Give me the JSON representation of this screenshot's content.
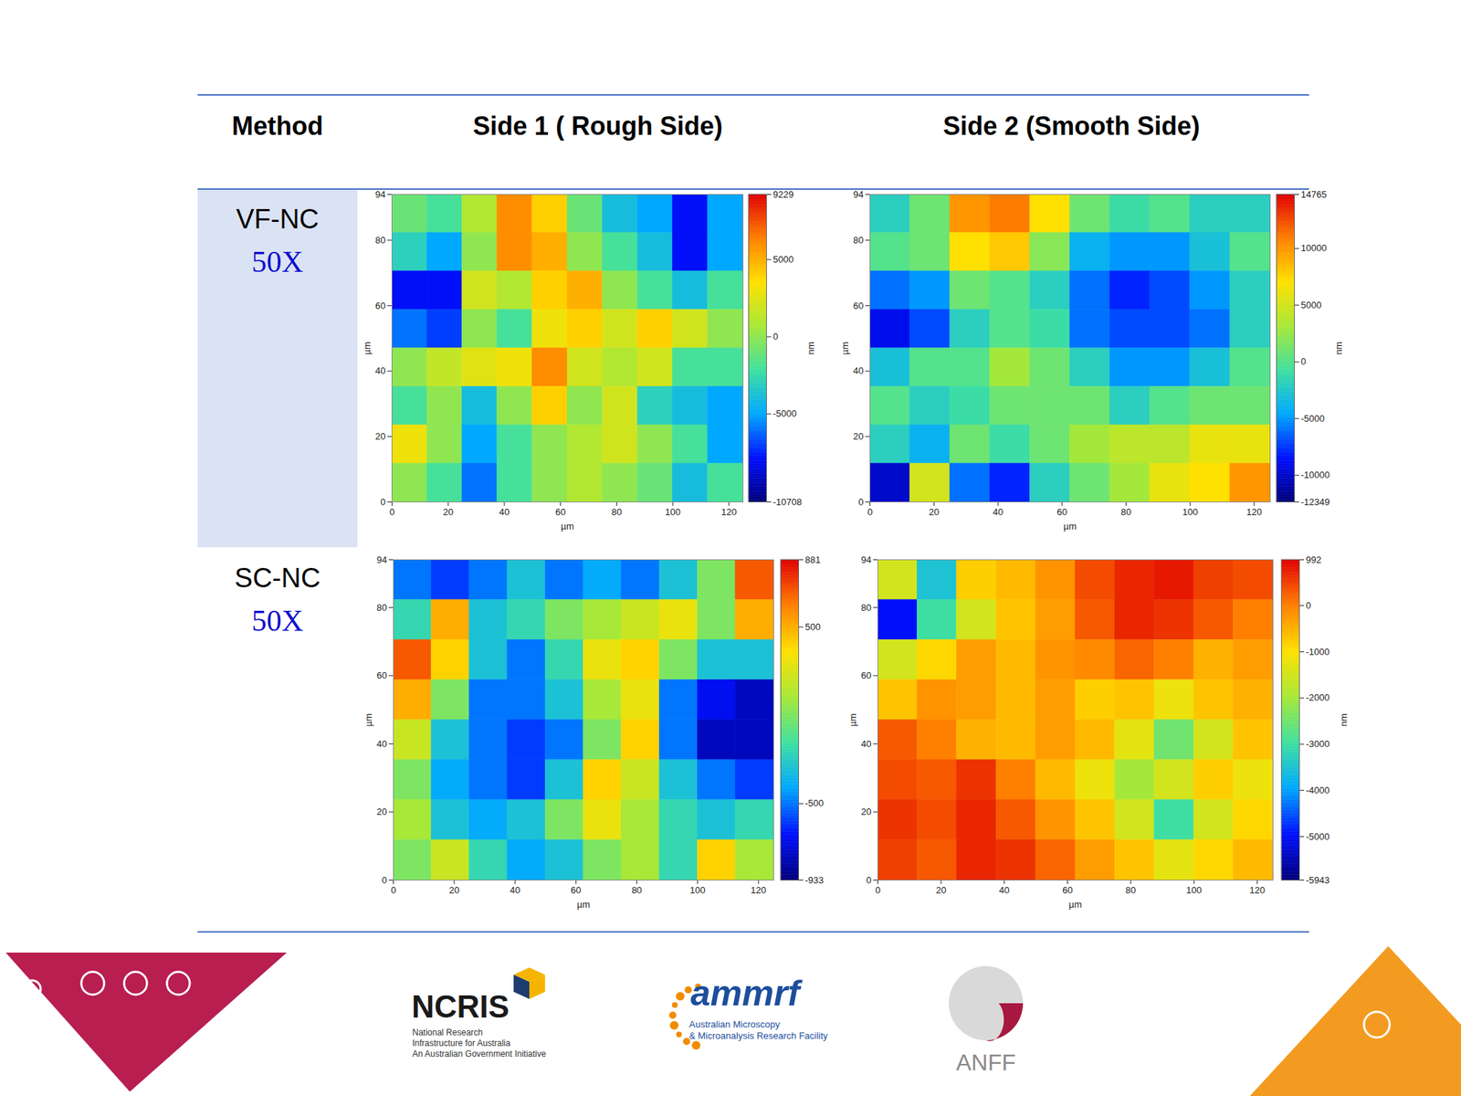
{
  "table": {
    "columns": [
      "Method",
      "Side 1 ( Rough Side)",
      "Side 2 (Smooth Side)"
    ],
    "rows": [
      {
        "method": "VF-NC",
        "magnification": "50X"
      },
      {
        "method": "SC-NC",
        "magnification": "50X"
      }
    ]
  },
  "chart_data": [
    {
      "type": "heatmap",
      "x_label": "µm",
      "y_label": "µm",
      "xlim": [
        0,
        125
      ],
      "ylim": [
        0,
        94
      ],
      "xticks": [
        0,
        20,
        40,
        60,
        80,
        100,
        120
      ],
      "yticks": [
        0,
        20,
        40,
        60,
        80,
        94
      ],
      "x_bins": [
        0,
        12.5,
        25,
        37.5,
        50,
        62.5,
        75,
        87.5,
        100,
        112.5,
        125
      ],
      "y_bins": [
        94,
        82.25,
        70.5,
        58.75,
        47,
        35.25,
        23.5,
        11.75,
        0
      ],
      "cells": [
        [
          -1000,
          -2000,
          1000,
          6000,
          4000,
          -1000,
          -4000,
          -5000,
          -8000,
          -5000
        ],
        [
          -3000,
          -5000,
          0,
          6000,
          5000,
          0,
          -2000,
          -4000,
          -8000,
          -5000
        ],
        [
          -8000,
          -8000,
          2000,
          1000,
          4000,
          5000,
          0,
          -2000,
          -4000,
          -2000
        ],
        [
          -6000,
          -7000,
          0,
          -2000,
          3000,
          4000,
          2000,
          4000,
          2000,
          0
        ],
        [
          0,
          1500,
          2500,
          3000,
          6000,
          2000,
          1000,
          2000,
          -2000,
          -2000
        ],
        [
          -2000,
          0,
          -4000,
          0,
          4000,
          0,
          2000,
          -3000,
          -4000,
          -5000
        ],
        [
          3000,
          0,
          -5000,
          -2000,
          0,
          1000,
          2000,
          0,
          -2000,
          -5000
        ],
        [
          0,
          -2000,
          -6000,
          -2000,
          0,
          1000,
          0,
          -1000,
          -4000,
          -2000
        ]
      ],
      "colorbar_range": [
        -10708,
        9229
      ],
      "colorbar_ticks": [
        -10708,
        -5000,
        0,
        5000,
        9229
      ],
      "colorbar_label": "nm"
    },
    {
      "type": "heatmap",
      "x_label": "µm",
      "y_label": "µm",
      "xlim": [
        0,
        125
      ],
      "ylim": [
        0,
        94
      ],
      "xticks": [
        0,
        20,
        40,
        60,
        80,
        100,
        120
      ],
      "yticks": [
        0,
        20,
        40,
        60,
        80,
        94
      ],
      "x_bins": [
        0,
        12.5,
        25,
        37.5,
        50,
        62.5,
        75,
        87.5,
        100,
        112.5,
        125
      ],
      "y_bins": [
        94,
        82.25,
        70.5,
        58.75,
        47,
        35.25,
        23.5,
        11.75,
        0
      ],
      "cells": [
        [
          -2000,
          1000,
          10000,
          11000,
          7000,
          1000,
          -1000,
          0,
          -2000,
          -2000
        ],
        [
          0,
          1000,
          7000,
          8000,
          2000,
          -4000,
          -5000,
          -5000,
          -3000,
          0
        ],
        [
          -6000,
          -5000,
          1000,
          0,
          -2000,
          -6000,
          -8000,
          -7000,
          -5000,
          -2000
        ],
        [
          -9000,
          -7000,
          -2000,
          0,
          -1000,
          -6000,
          -7000,
          -7000,
          -6000,
          -2000
        ],
        [
          -3000,
          0,
          0,
          3000,
          1000,
          -2000,
          -5000,
          -5000,
          -3000,
          0
        ],
        [
          0,
          -2000,
          -1000,
          1000,
          1000,
          1000,
          -2000,
          0,
          1000,
          1000
        ],
        [
          -2000,
          -4000,
          1000,
          -1000,
          1000,
          3000,
          4000,
          4000,
          6000,
          6000
        ],
        [
          -10000,
          5000,
          -6000,
          -8000,
          -2000,
          1000,
          3000,
          6000,
          7000,
          10000
        ]
      ],
      "colorbar_range": [
        -12349,
        14765
      ],
      "colorbar_ticks": [
        -12349,
        -10000,
        -5000,
        0,
        5000,
        10000,
        14765
      ],
      "colorbar_label": "nm"
    },
    {
      "type": "heatmap",
      "x_label": "µm",
      "y_label": "µm",
      "xlim": [
        0,
        125
      ],
      "ylim": [
        0,
        94
      ],
      "xticks": [
        0,
        20,
        40,
        60,
        80,
        100,
        120
      ],
      "yticks": [
        0,
        20,
        40,
        60,
        80,
        94
      ],
      "x_bins": [
        0,
        12.5,
        25,
        37.5,
        50,
        62.5,
        75,
        87.5,
        100,
        112.5,
        125
      ],
      "y_bins": [
        94,
        82.25,
        70.5,
        58.75,
        47,
        35.25,
        23.5,
        11.75,
        0
      ],
      "cells": [
        [
          -500,
          -600,
          -500,
          -300,
          -500,
          -400,
          -500,
          -300,
          0,
          700
        ],
        [
          -200,
          500,
          -300,
          -200,
          0,
          100,
          200,
          300,
          0,
          500
        ],
        [
          700,
          400,
          -300,
          -500,
          -200,
          300,
          400,
          0,
          -300,
          -300
        ],
        [
          500,
          0,
          -500,
          -500,
          -300,
          100,
          300,
          -500,
          -700,
          -800
        ],
        [
          200,
          -300,
          -500,
          -600,
          -500,
          0,
          400,
          -500,
          -800,
          -800
        ],
        [
          0,
          -400,
          -500,
          -600,
          -300,
          400,
          200,
          -300,
          -500,
          -600
        ],
        [
          100,
          -300,
          -400,
          -300,
          0,
          300,
          100,
          -200,
          -300,
          -200
        ],
        [
          0,
          200,
          -200,
          -400,
          -300,
          0,
          100,
          -200,
          400,
          100
        ]
      ],
      "colorbar_range": [
        -933,
        881
      ],
      "colorbar_ticks": [
        -933,
        -500,
        500,
        881
      ]
    },
    {
      "type": "heatmap",
      "x_label": "µm",
      "y_label": "µm",
      "xlim": [
        0,
        125
      ],
      "ylim": [
        0,
        94
      ],
      "xticks": [
        0,
        20,
        40,
        60,
        80,
        100,
        120
      ],
      "yticks": [
        0,
        20,
        40,
        60,
        80,
        94
      ],
      "x_bins": [
        0,
        12.5,
        25,
        37.5,
        50,
        62.5,
        75,
        87.5,
        100,
        112.5,
        125
      ],
      "y_bins": [
        94,
        82.25,
        70.5,
        58.75,
        47,
        35.25,
        23.5,
        11.75,
        0
      ],
      "cells": [
        [
          -1500,
          -3500,
          -800,
          -600,
          -200,
          400,
          700,
          800,
          500,
          400
        ],
        [
          -5000,
          -3000,
          -1500,
          -700,
          -300,
          300,
          700,
          600,
          300,
          0
        ],
        [
          -1500,
          -900,
          -300,
          -600,
          -200,
          -100,
          200,
          0,
          -500,
          -300
        ],
        [
          -700,
          -200,
          -300,
          -600,
          -300,
          -800,
          -700,
          -1200,
          -700,
          -500
        ],
        [
          300,
          0,
          -500,
          -600,
          -300,
          -600,
          -1300,
          -2500,
          -1500,
          -700
        ],
        [
          400,
          300,
          600,
          0,
          -600,
          -1200,
          -2000,
          -1500,
          -800,
          -1200
        ],
        [
          600,
          400,
          700,
          300,
          -200,
          -700,
          -1500,
          -3000,
          -1500,
          -900
        ],
        [
          500,
          300,
          700,
          600,
          200,
          -300,
          -700,
          -1300,
          -900,
          -600
        ]
      ],
      "colorbar_range": [
        -5943,
        992
      ],
      "colorbar_ticks": [
        -5943,
        -5000,
        -4000,
        -3000,
        -2000,
        -1000,
        0,
        992
      ],
      "colorbar_label": "nm"
    }
  ],
  "footer": {
    "logos": [
      {
        "name": "NCRIS",
        "lines": [
          "National Research",
          "Infrastructure for Australia",
          "An Australian Government Initiative"
        ]
      },
      {
        "name": "ammrf",
        "lines": [
          "Australian Microscopy",
          "& Microanalysis Research Facility"
        ]
      },
      {
        "name": "ANFF"
      }
    ]
  }
}
